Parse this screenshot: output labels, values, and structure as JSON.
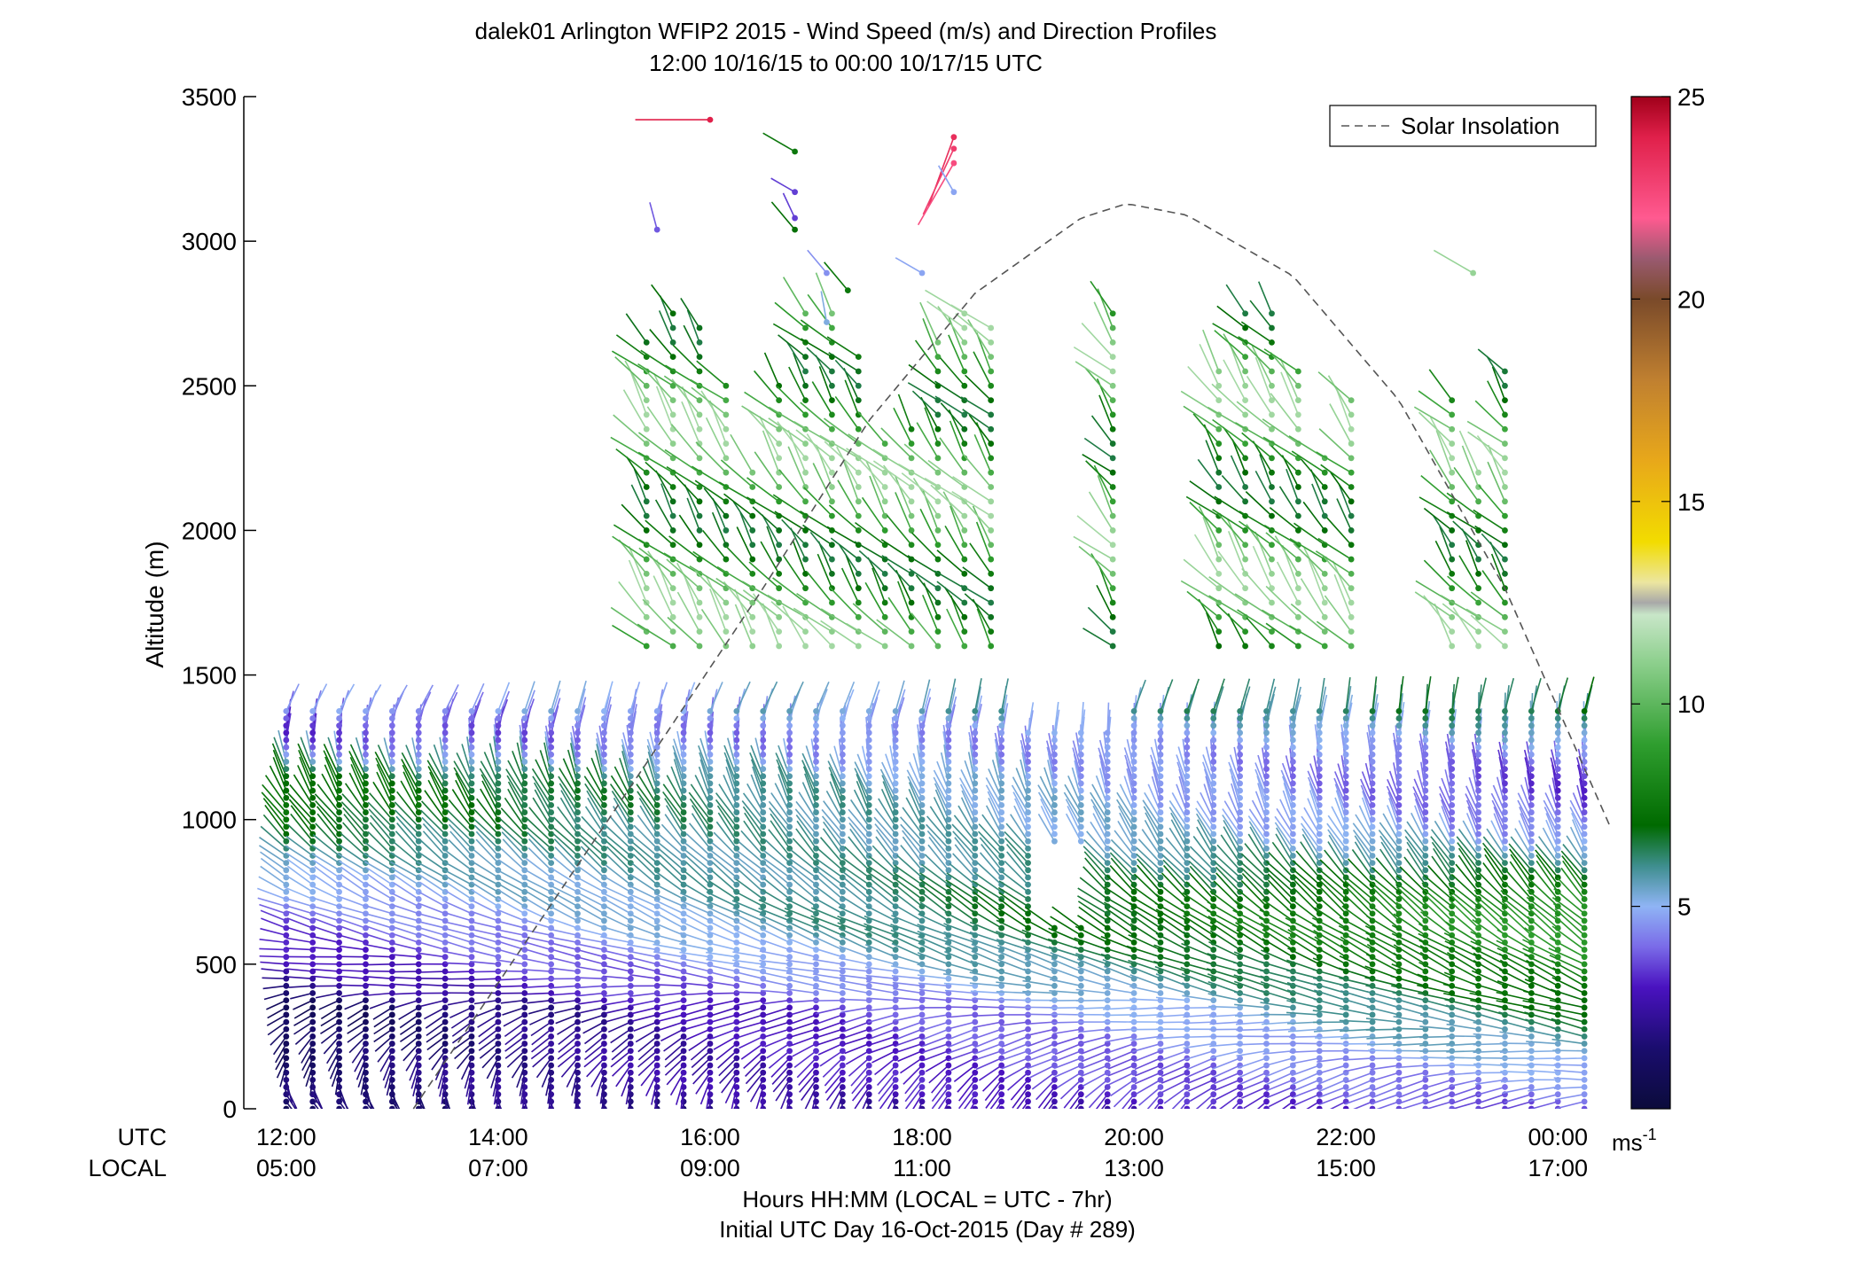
{
  "chart_data": {
    "type": "scatter",
    "title": "dalek01 Arlington WFIP2 2015 - Wind Speed (m/s) and Direction Profiles",
    "subtitle": "12:00 10/16/15 to 00:00 10/17/15  UTC",
    "ylabel": "Altitude (m)",
    "ylim": [
      0,
      3500
    ],
    "y_ticks": [
      0,
      500,
      1000,
      1500,
      2000,
      2500,
      3000,
      3500
    ],
    "xlim": [
      11.6,
      24.5
    ],
    "x_tick_hours": [
      12,
      14,
      16,
      18,
      20,
      22,
      24
    ],
    "x_row_labels": {
      "utc": "UTC",
      "local": "LOCAL"
    },
    "x_ticks_utc": [
      "12:00",
      "14:00",
      "16:00",
      "18:00",
      "20:00",
      "22:00",
      "00:00"
    ],
    "x_ticks_local": [
      "05:00",
      "07:00",
      "09:00",
      "11:00",
      "13:00",
      "15:00",
      "17:00"
    ],
    "xlabel": "Hours HH:MM  (LOCAL = UTC - 7hr)",
    "xlabel2": "Initial UTC Day 16-Oct-2015 (Day # 289)",
    "legend": {
      "label": "Solar Insolation",
      "placement": "top-right",
      "line_style": "dashed",
      "color": "#555555"
    },
    "colorbar": {
      "label": "ms",
      "label_exponent": "-1",
      "range": [
        0,
        25
      ],
      "ticks": [
        5,
        10,
        15,
        20,
        25
      ],
      "stops": [
        {
          "v": 0,
          "c": "#0b0b3b"
        },
        {
          "v": 1.5,
          "c": "#1a0d6e"
        },
        {
          "v": 3,
          "c": "#4a12c0"
        },
        {
          "v": 4,
          "c": "#7a6be8"
        },
        {
          "v": 5,
          "c": "#8fb4f5"
        },
        {
          "v": 6,
          "c": "#3e8e8e"
        },
        {
          "v": 7,
          "c": "#006a00"
        },
        {
          "v": 9,
          "c": "#2f9e2f"
        },
        {
          "v": 11,
          "c": "#8ccf8c"
        },
        {
          "v": 12.2,
          "c": "#c8e6c8"
        },
        {
          "v": 12.5,
          "c": "#a8a8a8"
        },
        {
          "v": 13,
          "c": "#ece6a0"
        },
        {
          "v": 14,
          "c": "#f2dc00"
        },
        {
          "v": 16,
          "c": "#e8a81a"
        },
        {
          "v": 18,
          "c": "#c08030"
        },
        {
          "v": 20,
          "c": "#7a4a2a"
        },
        {
          "v": 21,
          "c": "#9a5a70"
        },
        {
          "v": 22,
          "c": "#ff5a90"
        },
        {
          "v": 24,
          "c": "#e0204a"
        },
        {
          "v": 25,
          "c": "#a0001a"
        }
      ]
    },
    "solar_insolation_curve": {
      "x_hours": [
        13.2,
        15.5,
        16.5,
        17.5,
        18.5,
        19.5,
        19.93,
        20.5,
        21.5,
        22.5,
        23.5,
        24.5
      ],
      "y_alt": [
        0,
        1250,
        1800,
        2380,
        2820,
        3080,
        3130,
        3090,
        2880,
        2450,
        1800,
        970
      ]
    },
    "wind_profiles": {
      "times_hours": [
        12.0,
        12.25,
        12.5,
        12.75,
        13.0,
        13.25,
        13.5,
        13.75,
        14.0,
        14.25,
        14.5,
        14.75,
        15.0,
        15.25,
        15.5,
        15.75,
        16.0,
        16.25,
        16.5,
        16.75,
        17.0,
        17.25,
        17.5,
        17.75,
        18.0,
        18.25,
        18.5,
        18.75,
        19.0,
        19.25,
        19.5,
        19.75,
        20.0,
        20.25,
        20.5,
        20.75,
        21.0,
        21.25,
        21.5,
        21.75,
        22.0,
        22.25,
        22.5,
        22.75,
        23.0,
        23.25,
        23.5,
        23.75,
        24.0,
        24.25
      ],
      "altitude_gates_m": [
        0,
        25,
        50,
        75,
        100,
        125,
        150,
        175,
        200,
        225,
        250,
        275,
        300,
        325,
        350,
        375,
        400,
        425,
        450,
        475,
        500,
        525,
        550,
        575,
        600,
        625,
        650,
        675,
        700,
        725,
        750,
        775,
        800,
        825,
        850,
        875,
        900,
        925,
        950,
        975,
        1000,
        1025,
        1050,
        1075,
        1100,
        1125,
        1150,
        1175,
        1200,
        1225,
        1250,
        1275,
        1300,
        1325,
        1350,
        1375
      ],
      "speed_profile_ms": {
        "early": [
          1.0,
          1.2,
          1.5,
          1.6,
          1.6,
          1.5,
          1.4,
          1.3,
          1.2,
          1.1,
          1.0,
          1.0,
          0.9,
          0.8,
          0.8,
          1.2,
          1.8,
          2.0,
          2.2,
          2.4,
          2.6,
          2.8,
          3.0,
          3.2,
          3.4,
          3.6,
          3.8,
          4.0,
          4.3,
          4.6,
          4.8,
          5.0,
          5.2,
          5.5,
          5.8,
          6.0,
          6.3,
          6.5,
          6.8,
          7.0,
          7.2,
          7.4,
          7.5,
          7.5,
          7.4,
          7.2,
          6.8,
          6.0,
          5.2,
          4.5,
          4.0,
          3.6,
          3.4,
          3.5,
          4.0,
          4.5
        ],
        "late": [
          3.8,
          4.0,
          4.2,
          4.4,
          4.6,
          4.8,
          5.0,
          5.3,
          5.6,
          5.8,
          6.0,
          6.3,
          6.5,
          6.8,
          7.0,
          7.2,
          7.4,
          7.6,
          7.8,
          8.0,
          8.2,
          8.4,
          8.6,
          8.8,
          9.0,
          9.0,
          8.9,
          8.7,
          8.4,
          8.0,
          7.6,
          7.2,
          6.8,
          6.4,
          6.0,
          5.6,
          5.2,
          4.8,
          4.4,
          4.2,
          4.0,
          3.8,
          3.6,
          3.5,
          3.4,
          3.4,
          3.5,
          3.7,
          4.0,
          4.4,
          4.8,
          5.2,
          5.6,
          6.0,
          6.4,
          6.8
        ]
      },
      "direction_profile_deg": {
        "early": [
          130,
          140,
          150,
          160,
          170,
          180,
          190,
          200,
          210,
          215,
          220,
          225,
          230,
          235,
          240,
          250,
          260,
          265,
          268,
          270,
          272,
          275,
          278,
          280,
          282,
          285,
          288,
          290,
          292,
          295,
          298,
          300,
          302,
          305,
          308,
          310,
          312,
          315,
          318,
          320,
          322,
          325,
          328,
          330,
          333,
          336,
          340,
          345,
          350,
          355,
          0,
          5,
          10,
          15,
          20,
          25
        ],
        "late": [
          260,
          262,
          264,
          266,
          268,
          270,
          272,
          274,
          276,
          278,
          280,
          282,
          284,
          286,
          288,
          290,
          292,
          294,
          296,
          298,
          300,
          302,
          304,
          306,
          308,
          310,
          312,
          314,
          316,
          318,
          320,
          322,
          324,
          326,
          328,
          330,
          332,
          334,
          336,
          338,
          340,
          342,
          344,
          346,
          348,
          350,
          352,
          354,
          356,
          358,
          0,
          2,
          4,
          6,
          8,
          10
        ]
      },
      "upper_layer": {
        "altitude_range_m": [
          1450,
          2800
        ],
        "time_ranges_hours": [
          [
            15.4,
            18.8
          ],
          [
            19.8,
            19.9
          ],
          [
            20.8,
            22.1
          ],
          [
            23.0,
            23.7
          ]
        ],
        "speed_range_ms": [
          6.5,
          11.5
        ],
        "direction_deg_range": [
          300,
          340
        ]
      },
      "isolated_high_points": [
        {
          "time": 16.0,
          "alt": 3420,
          "speed": 24.0,
          "dir": 270
        },
        {
          "time": 18.3,
          "alt": 3360,
          "speed": 23.5,
          "dir": 200
        },
        {
          "time": 18.3,
          "alt": 3320,
          "speed": 23.0,
          "dir": 205
        },
        {
          "time": 18.3,
          "alt": 3270,
          "speed": 22.5,
          "dir": 210
        },
        {
          "time": 18.3,
          "alt": 3170,
          "speed": 4.8,
          "dir": 330
        },
        {
          "time": 16.8,
          "alt": 3310,
          "speed": 7.5,
          "dir": 300
        },
        {
          "time": 16.8,
          "alt": 3170,
          "speed": 3.5,
          "dir": 300
        },
        {
          "time": 16.8,
          "alt": 3080,
          "speed": 3.5,
          "dir": 335
        },
        {
          "time": 16.8,
          "alt": 3040,
          "speed": 7.2,
          "dir": 320
        },
        {
          "time": 15.5,
          "alt": 3040,
          "speed": 3.8,
          "dir": 345
        },
        {
          "time": 17.1,
          "alt": 2890,
          "speed": 4.5,
          "dir": 320
        },
        {
          "time": 17.1,
          "alt": 2720,
          "speed": 5.2,
          "dir": 350
        },
        {
          "time": 17.3,
          "alt": 2830,
          "speed": 7.5,
          "dir": 320
        },
        {
          "time": 18.0,
          "alt": 2890,
          "speed": 4.8,
          "dir": 300
        },
        {
          "time": 23.2,
          "alt": 2890,
          "speed": 11.2,
          "dir": 300
        }
      ]
    }
  }
}
